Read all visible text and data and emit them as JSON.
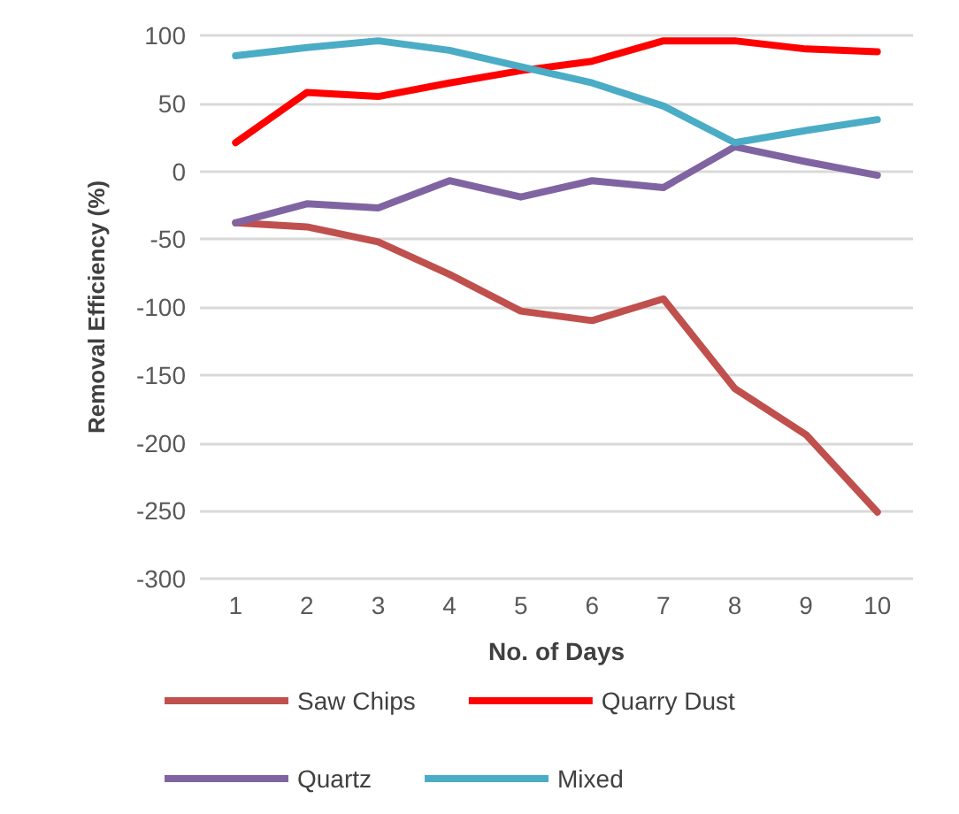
{
  "chart_data": {
    "type": "line",
    "xlabel": "No. of Days",
    "ylabel": "Removal Efficiency (%)",
    "categories": [
      "1",
      "2",
      "3",
      "4",
      "5",
      "6",
      "7",
      "8",
      "9",
      "10"
    ],
    "series": [
      {
        "name": "Saw Chips",
        "color": "#c0504d",
        "values": [
          -38,
          -41,
          -52,
          -76,
          -103,
          -110,
          -94,
          -160,
          -194,
          -251
        ]
      },
      {
        "name": "Quarry Dust",
        "color": "#ff0000",
        "values": [
          21,
          58,
          55,
          65,
          74,
          81,
          96,
          96,
          90,
          88
        ]
      },
      {
        "name": "Quartz",
        "color": "#8064a2",
        "values": [
          -38,
          -24,
          -27,
          -7,
          -19,
          -7,
          -12,
          18,
          7,
          -3
        ]
      },
      {
        "name": "Mixed",
        "color": "#4bacc6",
        "values": [
          85,
          91,
          96,
          89,
          77,
          65,
          48,
          21,
          30,
          38
        ]
      }
    ],
    "ylim": [
      -300,
      100
    ],
    "yticks": [
      -300,
      -250,
      -200,
      -150,
      -100,
      -50,
      0,
      50,
      100
    ],
    "grid": "y",
    "legend": "bottom",
    "marker": "none",
    "line_style": "solid"
  }
}
